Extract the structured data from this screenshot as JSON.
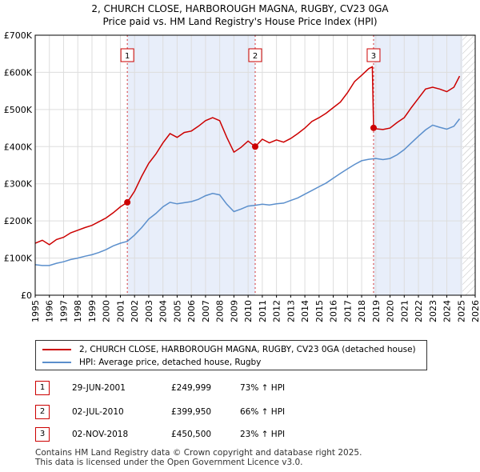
{
  "colors": {
    "property_line": "#cc0000",
    "hpi_line": "#5b8fcc",
    "shade": "#e8eefa",
    "grid": "#dddddd",
    "marker_box": "#cc0000"
  },
  "chart_data": {
    "type": "line",
    "title": "2, CHURCH CLOSE, HARBOROUGH MAGNA, RUGBY, CV23 0GA",
    "subtitle": "Price paid vs. HM Land Registry's House Price Index (HPI)",
    "xlabel": "",
    "ylabel": "",
    "xlim": [
      1995,
      2026
    ],
    "ylim": [
      0,
      700000
    ],
    "x_ticks": [
      "1995",
      "1996",
      "1997",
      "1998",
      "1999",
      "2000",
      "2001",
      "2002",
      "2003",
      "2004",
      "2005",
      "2006",
      "2007",
      "2008",
      "2009",
      "2010",
      "2011",
      "2012",
      "2013",
      "2014",
      "2015",
      "2016",
      "2017",
      "2018",
      "2019",
      "2020",
      "2021",
      "2022",
      "2023",
      "2024",
      "2025",
      "2026"
    ],
    "y_ticks": [
      {
        "value": 0,
        "label": "£0"
      },
      {
        "value": 100000,
        "label": "£100K"
      },
      {
        "value": 200000,
        "label": "£200K"
      },
      {
        "value": 300000,
        "label": "£300K"
      },
      {
        "value": 400000,
        "label": "£400K"
      },
      {
        "value": 500000,
        "label": "£500K"
      },
      {
        "value": 600000,
        "label": "£600K"
      },
      {
        "value": 700000,
        "label": "£700K"
      }
    ],
    "grid": true,
    "shaded_periods": [
      [
        2001.49,
        2010.5
      ],
      [
        2018.84,
        2025.1
      ]
    ],
    "projection_hatch_from": 2025.1,
    "series": [
      {
        "name": "2, CHURCH CLOSE, HARBOROUGH MAGNA, RUGBY, CV23 0GA (detached house)",
        "color": "#cc0000",
        "points": [
          [
            1995.0,
            140000
          ],
          [
            1995.5,
            148000
          ],
          [
            1996.0,
            136000
          ],
          [
            1996.5,
            150000
          ],
          [
            1997.0,
            156000
          ],
          [
            1997.5,
            168000
          ],
          [
            1998.0,
            175000
          ],
          [
            1998.5,
            182000
          ],
          [
            1999.0,
            188000
          ],
          [
            1999.5,
            198000
          ],
          [
            2000.0,
            208000
          ],
          [
            2000.5,
            222000
          ],
          [
            2001.0,
            238000
          ],
          [
            2001.49,
            249999
          ],
          [
            2002.0,
            280000
          ],
          [
            2002.5,
            320000
          ],
          [
            2003.0,
            355000
          ],
          [
            2003.5,
            380000
          ],
          [
            2004.0,
            410000
          ],
          [
            2004.5,
            435000
          ],
          [
            2005.0,
            425000
          ],
          [
            2005.5,
            438000
          ],
          [
            2006.0,
            442000
          ],
          [
            2006.5,
            455000
          ],
          [
            2007.0,
            470000
          ],
          [
            2007.5,
            478000
          ],
          [
            2008.0,
            470000
          ],
          [
            2008.5,
            425000
          ],
          [
            2009.0,
            385000
          ],
          [
            2009.5,
            398000
          ],
          [
            2010.0,
            415000
          ],
          [
            2010.5,
            399950
          ],
          [
            2011.0,
            420000
          ],
          [
            2011.5,
            410000
          ],
          [
            2012.0,
            418000
          ],
          [
            2012.5,
            412000
          ],
          [
            2013.0,
            422000
          ],
          [
            2013.5,
            435000
          ],
          [
            2014.0,
            450000
          ],
          [
            2014.5,
            468000
          ],
          [
            2015.0,
            478000
          ],
          [
            2015.5,
            490000
          ],
          [
            2016.0,
            505000
          ],
          [
            2016.5,
            520000
          ],
          [
            2017.0,
            545000
          ],
          [
            2017.5,
            575000
          ],
          [
            2018.0,
            592000
          ],
          [
            2018.5,
            610000
          ],
          [
            2018.75,
            615000
          ],
          [
            2018.84,
            450500
          ],
          [
            2019.0,
            448000
          ],
          [
            2019.5,
            446000
          ],
          [
            2020.0,
            450000
          ],
          [
            2020.5,
            465000
          ],
          [
            2021.0,
            478000
          ],
          [
            2021.5,
            505000
          ],
          [
            2022.0,
            530000
          ],
          [
            2022.5,
            555000
          ],
          [
            2023.0,
            560000
          ],
          [
            2023.5,
            555000
          ],
          [
            2024.0,
            548000
          ],
          [
            2024.5,
            560000
          ],
          [
            2024.9,
            590000
          ]
        ]
      },
      {
        "name": "HPI: Average price, detached house, Rugby",
        "color": "#5b8fcc",
        "points": [
          [
            1995.0,
            82000
          ],
          [
            1995.5,
            80000
          ],
          [
            1996.0,
            80000
          ],
          [
            1996.5,
            86000
          ],
          [
            1997.0,
            90000
          ],
          [
            1997.5,
            96000
          ],
          [
            1998.0,
            100000
          ],
          [
            1998.5,
            105000
          ],
          [
            1999.0,
            109000
          ],
          [
            1999.5,
            115000
          ],
          [
            2000.0,
            123000
          ],
          [
            2000.5,
            133000
          ],
          [
            2001.0,
            140000
          ],
          [
            2001.49,
            145000
          ],
          [
            2002.0,
            162000
          ],
          [
            2002.5,
            182000
          ],
          [
            2003.0,
            205000
          ],
          [
            2003.5,
            220000
          ],
          [
            2004.0,
            238000
          ],
          [
            2004.5,
            250000
          ],
          [
            2005.0,
            246000
          ],
          [
            2005.5,
            249000
          ],
          [
            2006.0,
            252000
          ],
          [
            2006.5,
            258000
          ],
          [
            2007.0,
            268000
          ],
          [
            2007.5,
            274000
          ],
          [
            2008.0,
            270000
          ],
          [
            2008.5,
            245000
          ],
          [
            2009.0,
            225000
          ],
          [
            2009.5,
            232000
          ],
          [
            2010.0,
            240000
          ],
          [
            2010.5,
            242000
          ],
          [
            2011.0,
            245000
          ],
          [
            2011.5,
            243000
          ],
          [
            2012.0,
            246000
          ],
          [
            2012.5,
            248000
          ],
          [
            2013.0,
            255000
          ],
          [
            2013.5,
            262000
          ],
          [
            2014.0,
            272000
          ],
          [
            2014.5,
            282000
          ],
          [
            2015.0,
            292000
          ],
          [
            2015.5,
            302000
          ],
          [
            2016.0,
            315000
          ],
          [
            2016.5,
            328000
          ],
          [
            2017.0,
            340000
          ],
          [
            2017.5,
            352000
          ],
          [
            2018.0,
            362000
          ],
          [
            2018.5,
            366000
          ],
          [
            2019.0,
            368000
          ],
          [
            2019.5,
            365000
          ],
          [
            2020.0,
            368000
          ],
          [
            2020.5,
            378000
          ],
          [
            2021.0,
            392000
          ],
          [
            2021.5,
            410000
          ],
          [
            2022.0,
            428000
          ],
          [
            2022.5,
            445000
          ],
          [
            2023.0,
            458000
          ],
          [
            2023.5,
            452000
          ],
          [
            2024.0,
            447000
          ],
          [
            2024.5,
            455000
          ],
          [
            2024.9,
            475000
          ]
        ]
      }
    ],
    "sales": [
      {
        "label": "1",
        "x": 2001.49,
        "value": 249999
      },
      {
        "label": "2",
        "x": 2010.5,
        "value": 399950
      },
      {
        "label": "3",
        "x": 2018.84,
        "value": 450500
      }
    ]
  },
  "legend": {
    "property": "2, CHURCH CLOSE, HARBOROUGH MAGNA, RUGBY, CV23 0GA (detached house)",
    "hpi": "HPI: Average price, detached house, Rugby"
  },
  "sales_table": [
    {
      "num": "1",
      "date": "29-JUN-2001",
      "price": "£249,999",
      "pct": "73% ↑ HPI"
    },
    {
      "num": "2",
      "date": "02-JUL-2010",
      "price": "£399,950",
      "pct": "66% ↑ HPI"
    },
    {
      "num": "3",
      "date": "02-NOV-2018",
      "price": "£450,500",
      "pct": "23% ↑ HPI"
    }
  ],
  "footer": {
    "line1": "Contains HM Land Registry data © Crown copyright and database right 2025.",
    "line2": "This data is licensed under the Open Government Licence v3.0."
  }
}
